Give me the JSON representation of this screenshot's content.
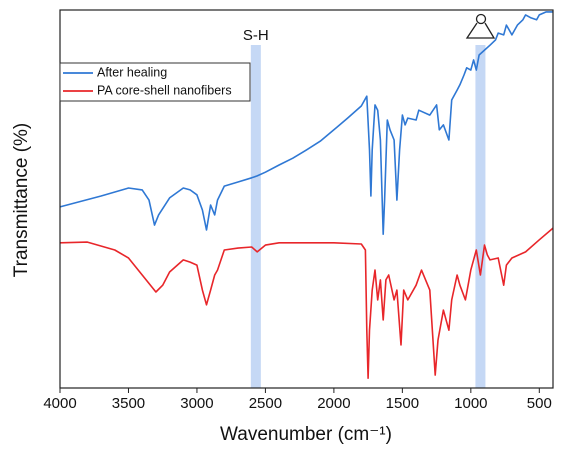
{
  "chart_data": {
    "type": "line",
    "xlabel": "Wavenumber (cm⁻¹)",
    "ylabel": "Transmittance (%)",
    "xlim": [
      4000,
      400
    ],
    "xticks": [
      4000,
      3500,
      3000,
      2500,
      2000,
      1500,
      1000,
      500
    ],
    "ylim": [
      0,
      100
    ],
    "legend": "upper left",
    "highlights": [
      2570,
      930
    ],
    "highlight_color": "#c5d8f5",
    "annotations": [
      {
        "text": "S-H",
        "x": 2570
      }
    ],
    "series": [
      {
        "name": "After healing",
        "color": "#2f78d4",
        "x": [
          4000,
          3700,
          3500,
          3400,
          3350,
          3310,
          3280,
          3200,
          3100,
          3050,
          3000,
          2960,
          2930,
          2900,
          2870,
          2850,
          2800,
          2700,
          2600,
          2560,
          2500,
          2400,
          2300,
          2200,
          2100,
          2000,
          1900,
          1800,
          1760,
          1740,
          1730,
          1720,
          1700,
          1680,
          1660,
          1640,
          1630,
          1610,
          1590,
          1560,
          1540,
          1520,
          1500,
          1480,
          1460,
          1400,
          1380,
          1300,
          1250,
          1230,
          1200,
          1160,
          1140,
          1100,
          1080,
          1050,
          1030,
          1000,
          980,
          960,
          940,
          900,
          860,
          820,
          800,
          760,
          740,
          720,
          700,
          660,
          620,
          600,
          560,
          520,
          500,
          450,
          400
        ],
        "values": [
          47.9,
          50.8,
          52.9,
          52.4,
          49.7,
          43.1,
          45.8,
          50.3,
          52.9,
          52.4,
          51.1,
          47.1,
          41.8,
          48.4,
          45.8,
          49.7,
          53.4,
          54.5,
          55.6,
          56.1,
          57.1,
          59.0,
          60.8,
          63.0,
          65.3,
          68.3,
          71.4,
          74.6,
          77.2,
          63.0,
          50.8,
          63.0,
          74.9,
          73.5,
          65.6,
          40.7,
          49.7,
          70.9,
          68.3,
          65.6,
          49.7,
          63.0,
          72.2,
          69.6,
          71.4,
          70.9,
          73.5,
          72.2,
          74.9,
          68.3,
          69.6,
          65.6,
          76.2,
          78.8,
          80.2,
          82.8,
          84.7,
          84.1,
          86.8,
          84.1,
          88.1,
          89.4,
          90.7,
          92.1,
          93.9,
          93.4,
          96.0,
          94.7,
          93.4,
          96.0,
          97.4,
          98.7,
          97.9,
          97.4,
          98.7,
          99.5,
          99.5
        ]
      },
      {
        "name": "PA core-shell nanofibers",
        "color": "#e8262a",
        "x": [
          4000,
          3800,
          3600,
          3500,
          3400,
          3300,
          3250,
          3200,
          3100,
          3050,
          3000,
          2960,
          2930,
          2900,
          2870,
          2850,
          2800,
          2700,
          2600,
          2560,
          2500,
          2400,
          2200,
          2000,
          1800,
          1770,
          1760,
          1750,
          1740,
          1720,
          1700,
          1680,
          1660,
          1640,
          1620,
          1600,
          1560,
          1540,
          1510,
          1490,
          1460,
          1400,
          1360,
          1300,
          1260,
          1240,
          1200,
          1160,
          1140,
          1100,
          1080,
          1040,
          1020,
          1000,
          960,
          930,
          900,
          880,
          860,
          800,
          760,
          740,
          700,
          600,
          500,
          400
        ],
        "values": [
          38.4,
          38.6,
          36.5,
          34.4,
          29.9,
          25.4,
          27.2,
          30.7,
          33.9,
          33.3,
          32.5,
          25.9,
          22.0,
          25.9,
          29.9,
          31.2,
          36.5,
          37.0,
          37.3,
          36.0,
          37.8,
          38.4,
          38.4,
          38.4,
          38.1,
          36.5,
          15.3,
          2.6,
          15.3,
          25.9,
          31.2,
          23.3,
          28.6,
          18.0,
          28.6,
          29.9,
          23.3,
          25.9,
          11.4,
          25.9,
          23.3,
          27.2,
          31.2,
          25.9,
          3.4,
          12.7,
          20.6,
          15.3,
          23.3,
          29.9,
          27.2,
          23.3,
          27.2,
          31.2,
          36.5,
          29.9,
          37.8,
          35.2,
          33.9,
          34.4,
          27.2,
          32.5,
          34.4,
          36.0,
          39.2,
          42.3
        ]
      }
    ]
  }
}
